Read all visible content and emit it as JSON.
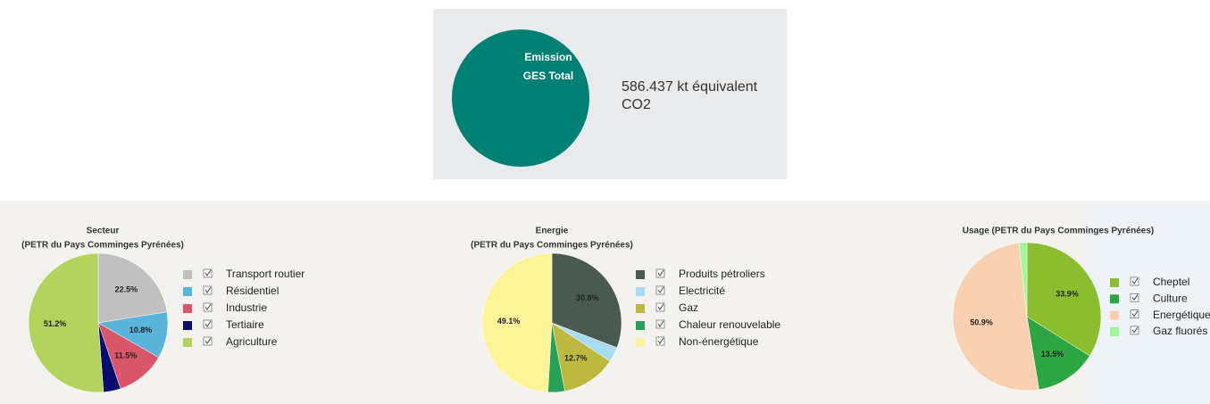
{
  "summary": {
    "label_lines": [
      "Emission",
      "GES Total"
    ],
    "value_lines": [
      "586.437 kt équivalent",
      "CO2"
    ]
  },
  "chart_data": [
    {
      "type": "pie",
      "title": "Secteur",
      "subtitle": "(PETR du Pays Comminges Pyrénées)",
      "categories": [
        "Transport routier",
        "Résidentiel",
        "Industrie",
        "Tertiaire",
        "Agriculture"
      ],
      "values": [
        22.5,
        10.8,
        11.5,
        4.0,
        51.2
      ],
      "value_labels": [
        "22.5%",
        "10.8%",
        "11.5%",
        null,
        "51.2%"
      ],
      "colors": [
        "#c0c0c0",
        "#5ab4d9",
        "#d9566a",
        "#0c0c6e",
        "#b3d35c"
      ]
    },
    {
      "type": "pie",
      "title": "Energie",
      "subtitle": "(PETR du Pays Comminges Pyrénées)",
      "categories": [
        "Produits pétroliers",
        "Electricité",
        "Gaz",
        "Chaleur renouvelable",
        "Non-énergétique"
      ],
      "values": [
        30.8,
        3.5,
        12.7,
        3.9,
        49.1
      ],
      "value_labels": [
        "30.8%",
        null,
        "12.7%",
        null,
        "49.1%"
      ],
      "colors": [
        "#4a5a50",
        "#a8dcf2",
        "#bdb83e",
        "#27a158",
        "#fbf597"
      ]
    },
    {
      "type": "pie",
      "title": "Usage (PETR du Pays Comminges Pyrénées)",
      "categories": [
        "Cheptel",
        "Culture",
        "Energétique",
        "Gaz fluorés"
      ],
      "values": [
        33.9,
        13.5,
        50.9,
        1.7
      ],
      "value_labels": [
        "33.9%",
        "13.5%",
        "50.9%",
        null
      ],
      "colors": [
        "#8cbd2e",
        "#2ba642",
        "#f9d0b0",
        "#9ef59a"
      ]
    }
  ]
}
